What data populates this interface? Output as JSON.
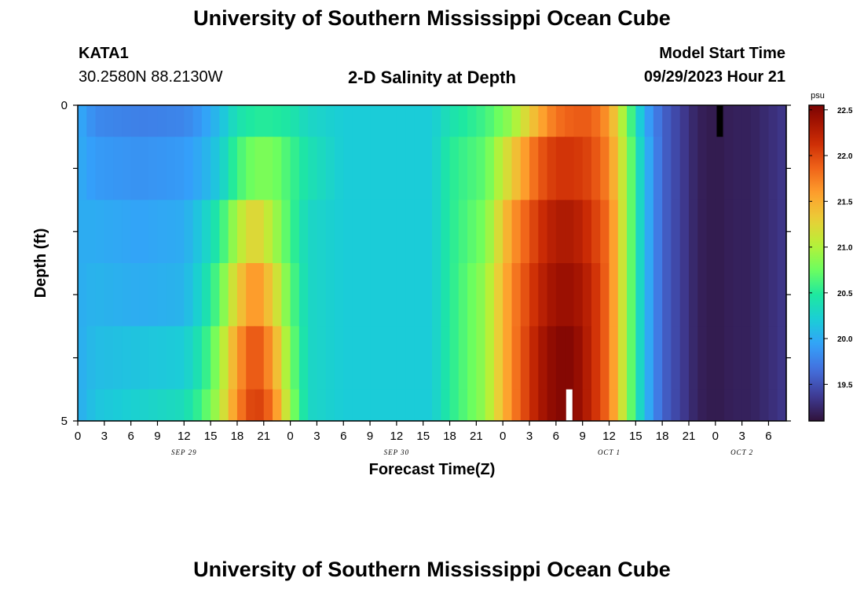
{
  "header": {
    "title": "University of Southern Mississippi Ocean Cube",
    "station_id": "KATA1",
    "station_coords": "30.2580N  88.2130W",
    "plot_title": "2-D Salinity at Depth",
    "model_start_label": "Model Start Time",
    "model_start_value": "09/29/2023 Hour 21"
  },
  "footer": {
    "title": "University of Southern Mississippi Ocean Cube"
  },
  "chart_data": {
    "type": "heatmap",
    "title": "2-D Salinity at Depth",
    "xlabel": "Forecast Time(Z)",
    "ylabel": "Depth (ft)",
    "colorbar_unit": "psu",
    "colorbar_ticks": [
      "22.5",
      "22.0",
      "21.5",
      "21.0",
      "20.5",
      "20.0",
      "19.5"
    ],
    "colorbar_range": [
      19.1,
      22.55
    ],
    "x_hours": [
      0,
      80
    ],
    "x_tick_labels": [
      "0",
      "3",
      "6",
      "9",
      "12",
      "15",
      "18",
      "21",
      "0",
      "3",
      "6",
      "9",
      "12",
      "15",
      "18",
      "21",
      "0",
      "3",
      "6",
      "9",
      "12",
      "15",
      "18",
      "21",
      "0",
      "3",
      "6"
    ],
    "date_labels": [
      {
        "text": "SEP 29",
        "hour": 12
      },
      {
        "text": "SEP 30",
        "hour": 36
      },
      {
        "text": "OCT 1",
        "hour": 60
      },
      {
        "text": "OCT 2",
        "hour": 75
      }
    ],
    "y_tick_labels": [
      "0",
      "",
      "",
      "",
      "",
      "5"
    ],
    "ylim": [
      0,
      5
    ],
    "depth_bands": [
      [
        0,
        0.5
      ],
      [
        0.5,
        1.5
      ],
      [
        1.5,
        2.5
      ],
      [
        2.5,
        3.5
      ],
      [
        3.5,
        4.5
      ],
      [
        4.5,
        5
      ]
    ],
    "keyframes_hours": [
      0,
      2,
      7,
      12,
      14,
      16,
      18,
      20,
      22,
      24,
      26,
      30,
      40,
      42,
      46,
      49,
      52,
      54,
      56,
      58,
      60,
      62,
      64,
      66,
      68,
      70,
      72,
      74,
      76,
      80
    ],
    "keyframe_values": [
      [
        20.0,
        19.8,
        19.75,
        19.78,
        19.9,
        20.1,
        20.4,
        20.5,
        20.5,
        20.45,
        20.3,
        20.2,
        20.2,
        20.4,
        20.6,
        20.9,
        21.5,
        21.8,
        21.9,
        21.9,
        21.6,
        20.8,
        20.0,
        19.6,
        19.4,
        19.2,
        19.15,
        19.2,
        19.2,
        19.35
      ],
      [
        20.0,
        19.9,
        19.85,
        19.9,
        20.0,
        20.2,
        20.6,
        20.8,
        20.8,
        20.6,
        20.4,
        20.2,
        20.2,
        20.5,
        20.7,
        21.3,
        21.9,
        22.1,
        22.1,
        22.0,
        21.7,
        20.9,
        20.1,
        19.6,
        19.4,
        19.2,
        19.15,
        19.2,
        19.2,
        19.35
      ],
      [
        20.0,
        20.0,
        19.95,
        20.0,
        20.2,
        20.5,
        21.0,
        21.3,
        21.0,
        20.6,
        20.3,
        20.2,
        20.2,
        20.5,
        20.8,
        21.6,
        22.1,
        22.3,
        22.3,
        22.1,
        21.8,
        20.9,
        20.1,
        19.6,
        19.4,
        19.2,
        19.15,
        19.2,
        19.2,
        19.35
      ],
      [
        20.0,
        20.05,
        20.0,
        20.05,
        20.3,
        20.7,
        21.3,
        21.7,
        21.3,
        20.7,
        20.3,
        20.2,
        20.2,
        20.5,
        20.9,
        21.7,
        22.2,
        22.4,
        22.4,
        22.2,
        21.8,
        20.9,
        20.1,
        19.6,
        19.4,
        19.2,
        19.15,
        19.2,
        19.2,
        19.35
      ],
      [
        20.0,
        20.1,
        20.15,
        20.2,
        20.45,
        20.9,
        21.6,
        22.0,
        21.6,
        20.8,
        20.3,
        20.2,
        20.2,
        20.5,
        20.9,
        21.7,
        22.3,
        22.5,
        22.5,
        22.2,
        21.8,
        20.9,
        20.1,
        19.6,
        19.4,
        19.2,
        19.15,
        19.2,
        19.2,
        19.35
      ],
      [
        20.0,
        20.15,
        20.25,
        20.35,
        20.6,
        21.0,
        21.7,
        22.1,
        21.8,
        20.9,
        20.3,
        20.2,
        20.2,
        20.5,
        20.9,
        21.7,
        22.3,
        22.5,
        22.5,
        22.2,
        21.8,
        20.9,
        20.1,
        19.6,
        19.4,
        19.2,
        19.15,
        19.2,
        19.2,
        19.35
      ]
    ],
    "markers": [
      {
        "color": "#000000",
        "hour": 72.5,
        "depth_top": 0,
        "depth_bottom": 0.5
      },
      {
        "color": "#ffffff",
        "hour": 55.5,
        "depth_top": 4.5,
        "depth_bottom": 5
      }
    ]
  }
}
